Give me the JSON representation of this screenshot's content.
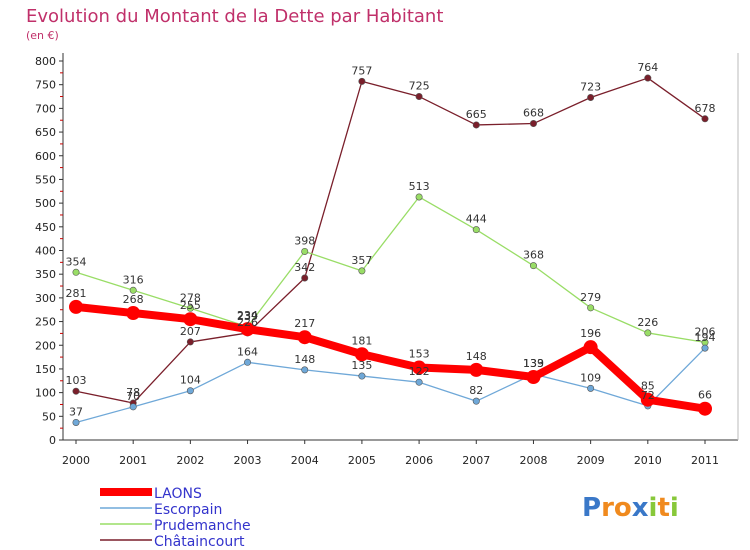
{
  "chart_data": {
    "type": "line",
    "title": "Evolution du Montant de la Dette par Habitant",
    "subtitle": "(en €)",
    "categories": [
      "2000",
      "2001",
      "2002",
      "2003",
      "2004",
      "2005",
      "2006",
      "2007",
      "2008",
      "2009",
      "2010",
      "2011"
    ],
    "ylim": [
      0,
      800
    ],
    "yticks": [
      0,
      50,
      100,
      150,
      200,
      250,
      300,
      350,
      400,
      450,
      500,
      550,
      600,
      650,
      700,
      750,
      800
    ],
    "grid": false,
    "legend_position": "bottom-left",
    "series": [
      {
        "name": "Châtaincourt",
        "color": "#7a1f2b",
        "values": [
          103,
          78,
          207,
          226,
          342,
          757,
          725,
          665,
          668,
          723,
          764,
          678
        ]
      },
      {
        "name": "Prudemanche",
        "color": "#99dd66",
        "values": [
          354,
          316,
          278,
          239,
          398,
          357,
          513,
          444,
          368,
          279,
          226,
          206
        ]
      },
      {
        "name": "Escorpain",
        "color": "#6fa8d8",
        "values": [
          37,
          70,
          104,
          164,
          148,
          135,
          122,
          82,
          139,
          109,
          72,
          194
        ]
      },
      {
        "name": "LAONS",
        "color": "#ff0000",
        "values": [
          281,
          268,
          255,
          234,
          217,
          181,
          153,
          148,
          133,
          196,
          85,
          66
        ]
      }
    ],
    "legend": [
      "LAONS",
      "Escorpain",
      "Prudemanche",
      "Châtaincourt"
    ]
  },
  "brand": {
    "text": "Proxiti"
  }
}
